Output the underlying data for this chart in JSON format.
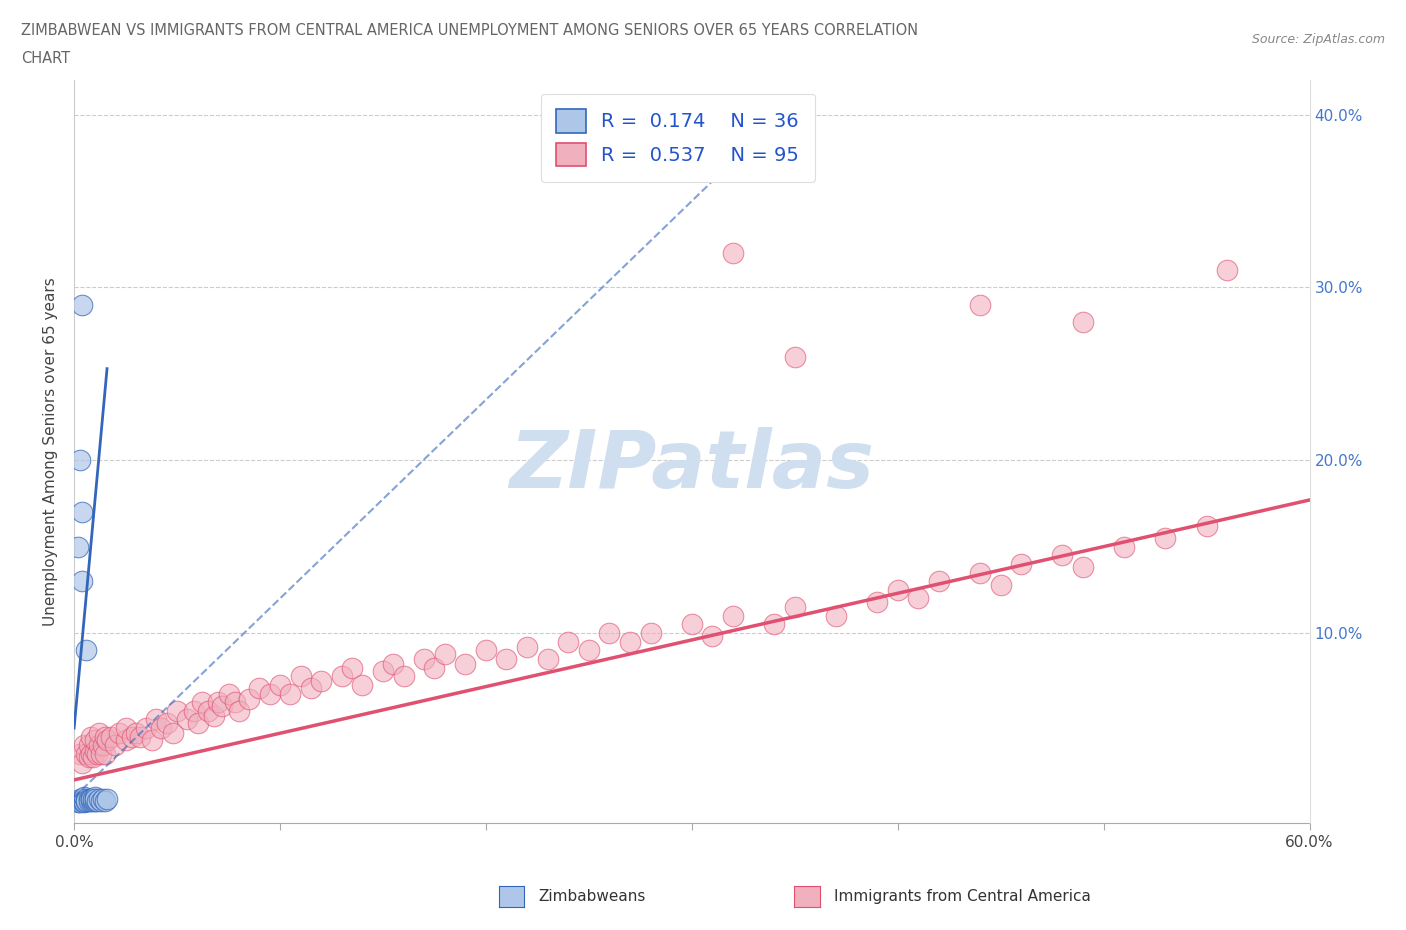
{
  "title_line1": "ZIMBABWEAN VS IMMIGRANTS FROM CENTRAL AMERICA UNEMPLOYMENT AMONG SENIORS OVER 65 YEARS CORRELATION",
  "title_line2": "CHART",
  "source": "Source: ZipAtlas.com",
  "ylabel": "Unemployment Among Seniors over 65 years",
  "xlim": [
    0.0,
    0.6
  ],
  "ylim": [
    -0.01,
    0.42
  ],
  "blue_color": "#aec6e8",
  "blue_line_color": "#3366bb",
  "pink_color": "#f0b0be",
  "pink_line_color": "#e05070",
  "legend_R1": "0.174",
  "legend_N1": "36",
  "legend_R2": "0.537",
  "legend_N2": "95",
  "watermark": "ZIPatlas",
  "watermark_color": "#d0dff0",
  "blue_scatter_x": [
    0.002,
    0.003,
    0.003,
    0.003,
    0.004,
    0.004,
    0.005,
    0.005,
    0.005,
    0.005,
    0.005,
    0.006,
    0.006,
    0.006,
    0.007,
    0.007,
    0.008,
    0.008,
    0.008,
    0.009,
    0.009,
    0.01,
    0.01,
    0.01,
    0.011,
    0.012,
    0.013,
    0.014,
    0.015,
    0.016,
    0.002,
    0.003,
    0.004,
    0.004,
    0.004,
    0.006
  ],
  "blue_scatter_y": [
    0.002,
    0.003,
    0.004,
    0.002,
    0.003,
    0.004,
    0.003,
    0.004,
    0.003,
    0.002,
    0.005,
    0.003,
    0.004,
    0.003,
    0.004,
    0.003,
    0.004,
    0.003,
    0.004,
    0.003,
    0.004,
    0.003,
    0.005,
    0.004,
    0.003,
    0.004,
    0.003,
    0.004,
    0.003,
    0.004,
    0.15,
    0.2,
    0.29,
    0.17,
    0.13,
    0.09
  ],
  "pink_scatter_x": [
    0.003,
    0.004,
    0.005,
    0.006,
    0.007,
    0.007,
    0.008,
    0.008,
    0.009,
    0.01,
    0.01,
    0.011,
    0.012,
    0.012,
    0.013,
    0.014,
    0.015,
    0.015,
    0.016,
    0.018,
    0.02,
    0.022,
    0.025,
    0.025,
    0.028,
    0.03,
    0.032,
    0.035,
    0.038,
    0.04,
    0.042,
    0.045,
    0.048,
    0.05,
    0.055,
    0.058,
    0.06,
    0.062,
    0.065,
    0.068,
    0.07,
    0.072,
    0.075,
    0.078,
    0.08,
    0.085,
    0.09,
    0.095,
    0.1,
    0.105,
    0.11,
    0.115,
    0.12,
    0.13,
    0.135,
    0.14,
    0.15,
    0.155,
    0.16,
    0.17,
    0.175,
    0.18,
    0.19,
    0.2,
    0.21,
    0.22,
    0.23,
    0.24,
    0.25,
    0.26,
    0.27,
    0.28,
    0.3,
    0.31,
    0.32,
    0.34,
    0.35,
    0.37,
    0.39,
    0.4,
    0.41,
    0.42,
    0.44,
    0.45,
    0.46,
    0.48,
    0.49,
    0.51,
    0.53,
    0.55,
    0.32,
    0.35,
    0.44,
    0.49,
    0.56
  ],
  "pink_scatter_y": [
    0.03,
    0.025,
    0.035,
    0.03,
    0.028,
    0.035,
    0.03,
    0.04,
    0.028,
    0.032,
    0.038,
    0.03,
    0.035,
    0.042,
    0.03,
    0.035,
    0.03,
    0.04,
    0.038,
    0.04,
    0.035,
    0.042,
    0.038,
    0.045,
    0.04,
    0.042,
    0.04,
    0.045,
    0.038,
    0.05,
    0.045,
    0.048,
    0.042,
    0.055,
    0.05,
    0.055,
    0.048,
    0.06,
    0.055,
    0.052,
    0.06,
    0.058,
    0.065,
    0.06,
    0.055,
    0.062,
    0.068,
    0.065,
    0.07,
    0.065,
    0.075,
    0.068,
    0.072,
    0.075,
    0.08,
    0.07,
    0.078,
    0.082,
    0.075,
    0.085,
    0.08,
    0.088,
    0.082,
    0.09,
    0.085,
    0.092,
    0.085,
    0.095,
    0.09,
    0.1,
    0.095,
    0.1,
    0.105,
    0.098,
    0.11,
    0.105,
    0.115,
    0.11,
    0.118,
    0.125,
    0.12,
    0.13,
    0.135,
    0.128,
    0.14,
    0.145,
    0.138,
    0.15,
    0.155,
    0.162,
    0.32,
    0.26,
    0.29,
    0.28,
    0.31
  ]
}
